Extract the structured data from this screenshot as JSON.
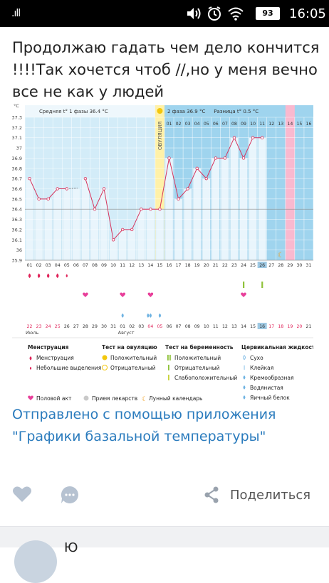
{
  "status_bar": {
    "signal": ".ıll",
    "battery": "93",
    "time": "16:05"
  },
  "post": {
    "text": "Продолжаю гадать чем дело кончится !!!!Так хочется чтоб //,но у меня вечно все не как у людей",
    "link_text": "Отправлено с помощью приложения \"Графики базальной температуры\""
  },
  "actions": {
    "share_label": "Поделиться"
  },
  "next_post": {
    "name": "Ю"
  },
  "colors": {
    "phase_blue": "#9fd4ee",
    "ovulation_yellow": "#fff1a8",
    "menstruation_pink": "#f9b9cf",
    "temp_line": "#d6335c",
    "accent": "#2a7bbd"
  },
  "chart_data": {
    "type": "line",
    "ylabel": "°C",
    "ylim": [
      35.9,
      37.3
    ],
    "y_ticks": [
      "37.3",
      "37.2",
      "37.1",
      "37",
      "36.9",
      "36.8",
      "36.7",
      "36.6",
      "36.5",
      "36.4",
      "36.3",
      "36.2",
      "36.1",
      "36",
      "35.9"
    ],
    "phase1_label": "Средняя t° 1 фазы 36.4 °C",
    "phase2_label": "2 фаза 36.9 °C",
    "diff_label": "Разница t° 0.5 °C",
    "ovulation_label": "ОВУЛЯЦИЯ",
    "cycle_day_numbers": [
      "01",
      "02",
      "03",
      "04",
      "05",
      "06",
      "07",
      "08",
      "09",
      "10",
      "11",
      "12",
      "13",
      "14",
      "15",
      "16"
    ],
    "x_labels": [
      "01",
      "02",
      "03",
      "04",
      "05",
      "06",
      "07",
      "08",
      "09",
      "10",
      "11",
      "12",
      "13",
      "14",
      "15",
      "16",
      "17",
      "18",
      "19",
      "20",
      "21",
      "22",
      "23",
      "24",
      "25",
      "26",
      "27",
      "28",
      "29",
      "30",
      "31"
    ],
    "values": [
      36.7,
      36.5,
      36.5,
      36.6,
      36.6,
      null,
      36.7,
      36.4,
      36.6,
      36.1,
      36.2,
      36.2,
      36.4,
      36.4,
      36.4,
      36.9,
      36.5,
      36.6,
      36.8,
      36.7,
      36.9,
      36.9,
      37.1,
      36.9,
      37.1,
      37.1,
      null,
      null,
      null,
      null,
      null
    ],
    "bar_tops": [
      36.7,
      36.5,
      36.5,
      36.6,
      36.6,
      36.6,
      36.7,
      36.4,
      36.6,
      36.1,
      36.2,
      36.2,
      36.4,
      36.4,
      36.4,
      36.9,
      36.5,
      36.6,
      36.8,
      36.7,
      36.9,
      36.9,
      37.1,
      36.9,
      37.1,
      37.1,
      null,
      null,
      null,
      null,
      null
    ],
    "ovulation_index": 14,
    "blue_from_index": 15,
    "menstruation_index": 28,
    "today_index": 25,
    "moon_index": 27,
    "baseline": 36.4,
    "menstruation_drops": [
      0,
      1,
      2,
      3
    ],
    "spotting_drops": [
      4
    ],
    "intercourse": [
      6,
      10,
      13,
      23
    ],
    "cervical_fluid": [
      10,
      13,
      14
    ],
    "pregnancy_tests": [
      23,
      25
    ],
    "date_labels": [
      "22",
      "23",
      "24",
      "25",
      "26",
      "27",
      "28",
      "29",
      "30",
      "31",
      "01",
      "02",
      "03",
      "04",
      "05",
      "06",
      "07",
      "08",
      "09",
      "10",
      "11",
      "12",
      "13",
      "14",
      "15",
      "16",
      "17",
      "18",
      "19",
      "20",
      "21"
    ],
    "red_date_indices": [
      0,
      1,
      2,
      3,
      13,
      14,
      26,
      27,
      28,
      29
    ],
    "month_labels": [
      "Июль",
      "Август"
    ],
    "legend": {
      "menstruation_title": "Менструация",
      "menstruation_items": [
        "Менструация",
        "Небольшие выделения"
      ],
      "ovulation_test_title": "Тест на овуляцию",
      "ovulation_test_items": [
        "Положительный",
        "Отрицательный"
      ],
      "pregnancy_test_title": "Тест на беременность",
      "pregnancy_test_items": [
        "Положительный",
        "Отрицательный",
        "Слабоположительный"
      ],
      "cervical_title": "Цервикальная жидкость",
      "cervical_items": [
        "Сухо",
        "Клейкая",
        "Кремообразная",
        "Водянистая",
        "Яичный белок"
      ],
      "bottom_items": [
        "Половой акт",
        "Прием лекарств",
        "Лунный календарь"
      ]
    }
  }
}
